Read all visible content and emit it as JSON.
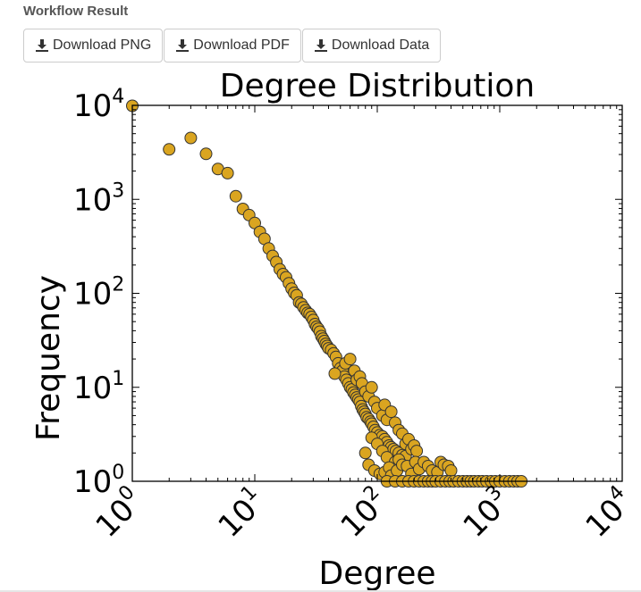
{
  "header": {
    "title": "Workflow Result"
  },
  "toolbar": {
    "buttons": [
      {
        "label": "Download PNG",
        "icon": "download-icon"
      },
      {
        "label": "Download PDF",
        "icon": "download-icon"
      },
      {
        "label": "Download Data",
        "icon": "download-icon"
      }
    ]
  },
  "chart_data": {
    "type": "scatter",
    "title": "Degree Distribution",
    "xlabel": "Degree",
    "ylabel": "Frequency",
    "xscale": "log",
    "yscale": "log",
    "xlim": [
      1,
      10000
    ],
    "ylim": [
      1,
      10000
    ],
    "xticks": [
      {
        "value": 1,
        "base": "10",
        "exp": "0"
      },
      {
        "value": 10,
        "base": "10",
        "exp": "1"
      },
      {
        "value": 100,
        "base": "10",
        "exp": "2"
      },
      {
        "value": 1000,
        "base": "10",
        "exp": "3"
      },
      {
        "value": 10000,
        "base": "10",
        "exp": "4"
      }
    ],
    "yticks": [
      {
        "value": 1,
        "base": "10",
        "exp": "0"
      },
      {
        "value": 10,
        "base": "10",
        "exp": "1"
      },
      {
        "value": 100,
        "base": "10",
        "exp": "2"
      },
      {
        "value": 1000,
        "base": "10",
        "exp": "3"
      },
      {
        "value": 10000,
        "base": "10",
        "exp": "4"
      }
    ],
    "grid": false,
    "marker_color": "#DAA520",
    "marker_edge_color": "#333333",
    "points": [
      [
        1,
        9900
      ],
      [
        2,
        3400
      ],
      [
        3,
        4500
      ],
      [
        4,
        3050
      ],
      [
        5,
        2100
      ],
      [
        6,
        1900
      ],
      [
        7,
        1080
      ],
      [
        8,
        790
      ],
      [
        9,
        680
      ],
      [
        10,
        560
      ],
      [
        11,
        450
      ],
      [
        12,
        380
      ],
      [
        13,
        300
      ],
      [
        14,
        250
      ],
      [
        15,
        215
      ],
      [
        16,
        180
      ],
      [
        17,
        160
      ],
      [
        18,
        148
      ],
      [
        19,
        128
      ],
      [
        20,
        112
      ],
      [
        21,
        101
      ],
      [
        22,
        95
      ],
      [
        23,
        80
      ],
      [
        24,
        77
      ],
      [
        25,
        71
      ],
      [
        26,
        66
      ],
      [
        27,
        62
      ],
      [
        28,
        60
      ],
      [
        29,
        56
      ],
      [
        30,
        52
      ],
      [
        31,
        47
      ],
      [
        32,
        44
      ],
      [
        33,
        42
      ],
      [
        34,
        39
      ],
      [
        35,
        35
      ],
      [
        36,
        33
      ],
      [
        37,
        31
      ],
      [
        38,
        29
      ],
      [
        39,
        27.5
      ],
      [
        40,
        26
      ],
      [
        42,
        25
      ],
      [
        44,
        23
      ],
      [
        46,
        21
      ],
      [
        48,
        18
      ],
      [
        50,
        16
      ],
      [
        52,
        15
      ],
      [
        54,
        13
      ],
      [
        56,
        12
      ],
      [
        58,
        11
      ],
      [
        60,
        10
      ],
      [
        62,
        9.5
      ],
      [
        64,
        8.8
      ],
      [
        66,
        8.3
      ],
      [
        68,
        7.8
      ],
      [
        70,
        7.4
      ],
      [
        72,
        7
      ],
      [
        74,
        6.3
      ],
      [
        76,
        5.8
      ],
      [
        78,
        5.5
      ],
      [
        80,
        5.2
      ],
      [
        82,
        4.8
      ],
      [
        85,
        4.6
      ],
      [
        88,
        4.3
      ],
      [
        90,
        4.1
      ],
      [
        93,
        3.8
      ],
      [
        96,
        3.5
      ],
      [
        100,
        3.3
      ],
      [
        105,
        3.1
      ],
      [
        110,
        3
      ],
      [
        115,
        2.8
      ],
      [
        120,
        2.6
      ],
      [
        125,
        2.4
      ],
      [
        130,
        2.3
      ],
      [
        136,
        2.2
      ],
      [
        142,
        2.1
      ],
      [
        150,
        2
      ],
      [
        160,
        1.9
      ],
      [
        170,
        1.85
      ],
      [
        45,
        14
      ],
      [
        55,
        18
      ],
      [
        60,
        20
      ],
      [
        65,
        15
      ],
      [
        68,
        12
      ],
      [
        72,
        13
      ],
      [
        75,
        11
      ],
      [
        80,
        9
      ],
      [
        85,
        8
      ],
      [
        90,
        10
      ],
      [
        95,
        7
      ],
      [
        100,
        6
      ],
      [
        110,
        5
      ],
      [
        115,
        6.5
      ],
      [
        120,
        4.5
      ],
      [
        130,
        5.5
      ],
      [
        140,
        4.2
      ],
      [
        150,
        3.5
      ],
      [
        160,
        3.2
      ],
      [
        170,
        2.5
      ],
      [
        180,
        2.8
      ],
      [
        190,
        2.2
      ],
      [
        200,
        2.4
      ],
      [
        210,
        2.1
      ],
      [
        90,
        2.9
      ],
      [
        100,
        2.5
      ],
      [
        110,
        2.1
      ],
      [
        120,
        1.8
      ],
      [
        140,
        1.6
      ],
      [
        150,
        1.7
      ],
      [
        80,
        2
      ],
      [
        85,
        1.5
      ],
      [
        95,
        1.3
      ],
      [
        105,
        1.2
      ],
      [
        115,
        1.25
      ],
      [
        125,
        1.4
      ],
      [
        130,
        1.15
      ],
      [
        145,
        1.3
      ],
      [
        160,
        1.5
      ],
      [
        175,
        1.45
      ],
      [
        190,
        1.2
      ],
      [
        205,
        1.6
      ],
      [
        220,
        1.35
      ],
      [
        240,
        1.6
      ],
      [
        260,
        1.45
      ],
      [
        280,
        1.3
      ],
      [
        310,
        1.25
      ],
      [
        330,
        1.6
      ],
      [
        350,
        1.5
      ],
      [
        380,
        1.45
      ],
      [
        400,
        1.3
      ],
      [
        120,
        1
      ],
      [
        140,
        1
      ],
      [
        160,
        1
      ],
      [
        180,
        1
      ],
      [
        200,
        1
      ],
      [
        220,
        1
      ],
      [
        240,
        1
      ],
      [
        260,
        1
      ],
      [
        280,
        1
      ],
      [
        300,
        1
      ],
      [
        330,
        1
      ],
      [
        360,
        1
      ],
      [
        390,
        1
      ],
      [
        420,
        1
      ],
      [
        460,
        1
      ],
      [
        500,
        1
      ],
      [
        540,
        1
      ],
      [
        580,
        1
      ],
      [
        620,
        1
      ],
      [
        670,
        1
      ],
      [
        720,
        1
      ],
      [
        780,
        1
      ],
      [
        850,
        1
      ],
      [
        920,
        1
      ],
      [
        1000,
        1
      ],
      [
        1100,
        1
      ],
      [
        1200,
        1
      ],
      [
        1300,
        1
      ],
      [
        1400,
        1
      ],
      [
        1500,
        1
      ]
    ]
  }
}
